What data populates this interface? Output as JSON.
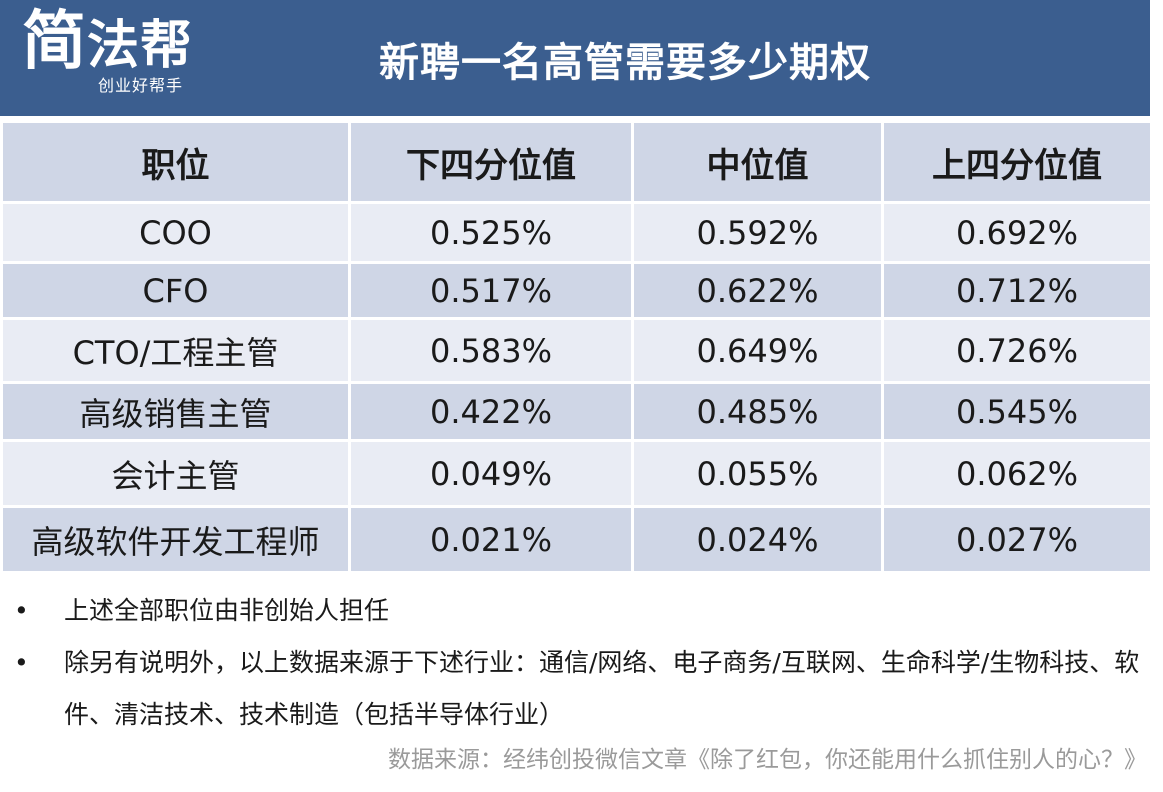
{
  "logo": {
    "main_big": "简",
    "main_rest": "法帮",
    "sub": "创业好帮手"
  },
  "title": "新聘一名高管需要多少期权",
  "table": {
    "headers": [
      "职位",
      "下四分位值",
      "中位值",
      "上四分位值"
    ],
    "rows": [
      [
        "COO",
        "0.525%",
        "0.592%",
        "0.692%"
      ],
      [
        "CFO",
        "0.517%",
        "0.622%",
        "0.712%"
      ],
      [
        "CTO/工程主管",
        "0.583%",
        "0.649%",
        "0.726%"
      ],
      [
        "高级销售主管",
        "0.422%",
        "0.485%",
        "0.545%"
      ],
      [
        "会计主管",
        "0.049%",
        "0.055%",
        "0.062%"
      ],
      [
        "高级软件开发工程师",
        "0.021%",
        "0.024%",
        "0.027%"
      ]
    ]
  },
  "notes": [
    "上述全部职位由非创始人担任",
    "除另有说明外，以上数据来源于下述行业：通信/网络、电子商务/互联网、生命科学/生物科技、软件、清洁技术、技术制造（包括半导体行业）"
  ],
  "bullet_symbol": "•",
  "source": "数据来源：经纬创投微信文章《除了红包，你还能用什么抓住别人的心？》",
  "colors": {
    "header_bg": "#3b5e8f",
    "row_dark": "#cfd6e6",
    "row_light": "#e9ecf4"
  }
}
